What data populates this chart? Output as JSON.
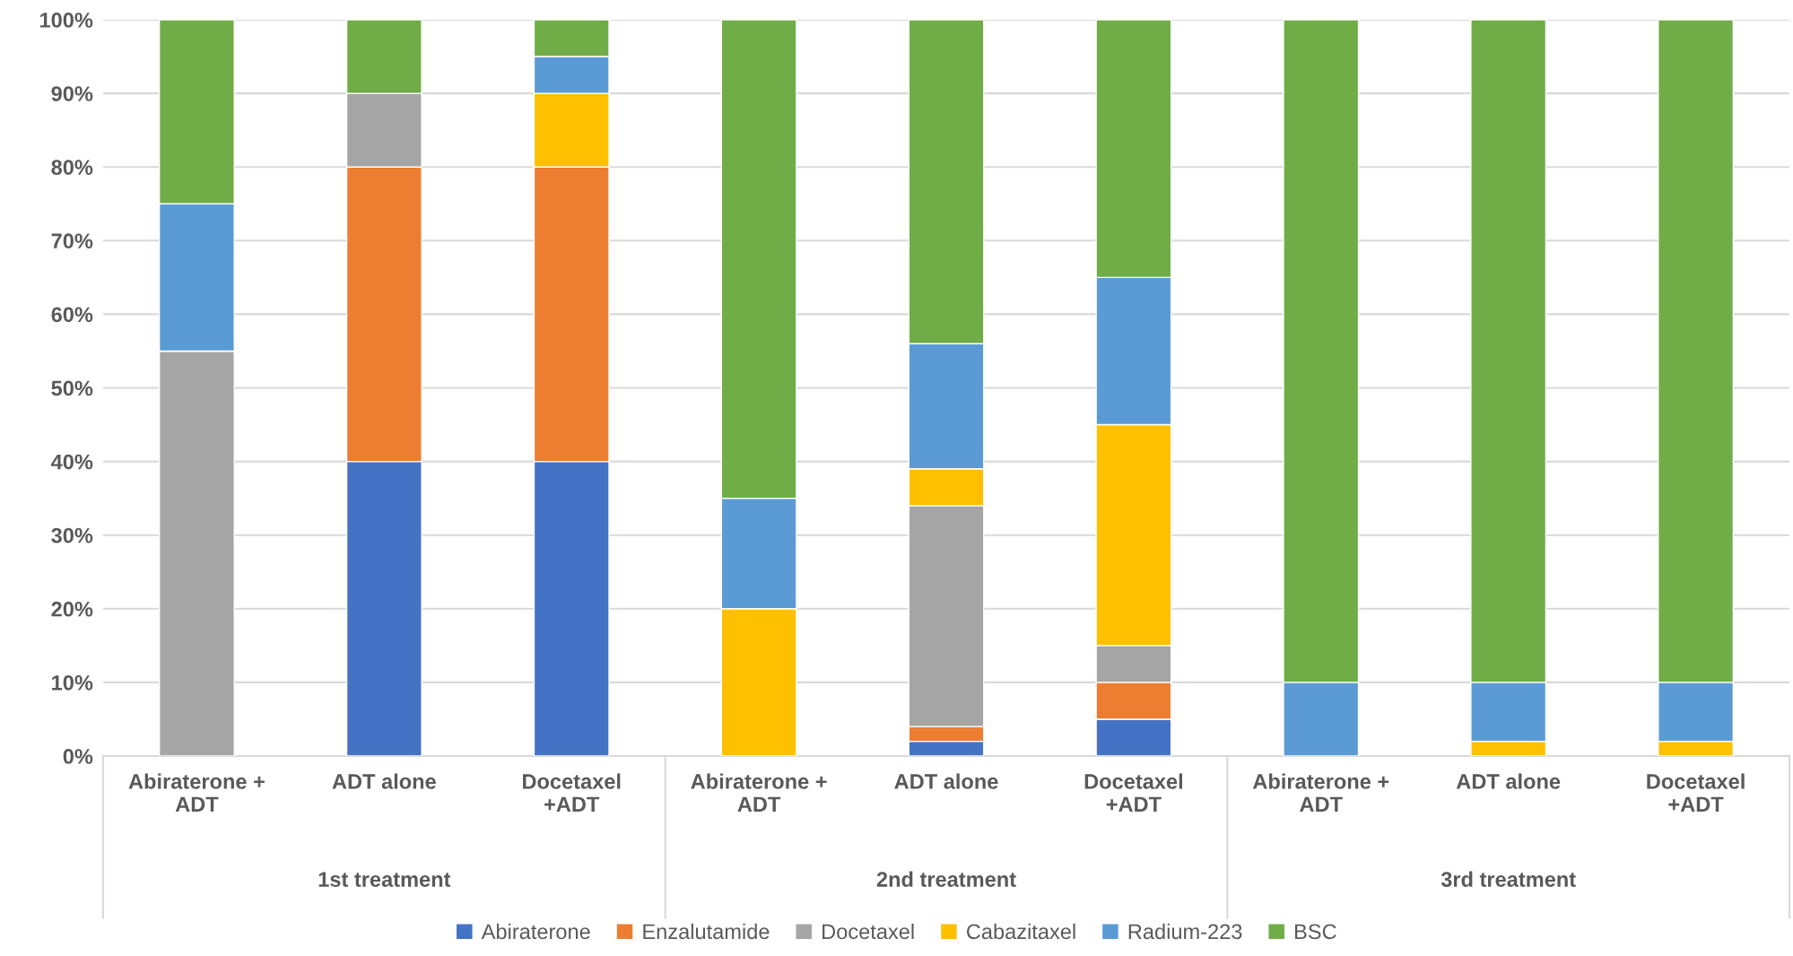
{
  "chart_data": {
    "type": "bar",
    "stacked": true,
    "categories": [
      "Abiraterone +\nADT",
      "ADT alone",
      "Docetaxel\n+ADT",
      "Abiraterone +\nADT",
      "ADT alone",
      "Docetaxel\n+ADT",
      "Abiraterone +\nADT",
      "ADT alone",
      "Docetaxel\n+ADT"
    ],
    "series": [
      {
        "name": "Abiraterone",
        "color": "#4472c4",
        "values": [
          0,
          40,
          40,
          0,
          2,
          5,
          0,
          0,
          0
        ]
      },
      {
        "name": "Enzalutamide",
        "color": "#ed7d31",
        "values": [
          0,
          40,
          40,
          0,
          2,
          5,
          0,
          0,
          0
        ]
      },
      {
        "name": "Docetaxel",
        "color": "#a5a5a5",
        "values": [
          55,
          10,
          0,
          0,
          30,
          5,
          0,
          0,
          0
        ]
      },
      {
        "name": "Cabazitaxel",
        "color": "#ffc000",
        "values": [
          0,
          0,
          10,
          20,
          5,
          30,
          0,
          2,
          2
        ]
      },
      {
        "name": "Radium-223",
        "color": "#5b9bd5",
        "values": [
          20,
          0,
          5,
          15,
          17,
          20,
          10,
          8,
          8
        ]
      },
      {
        "name": "BSC",
        "color": "#70ad47",
        "values": [
          25,
          10,
          5,
          65,
          44,
          35,
          90,
          90,
          90
        ]
      }
    ],
    "ylim": [
      0,
      100
    ],
    "yticks": [
      {
        "value": 0,
        "label": "0%"
      },
      {
        "value": 10,
        "label": "10%"
      },
      {
        "value": 20,
        "label": "20%"
      },
      {
        "value": 30,
        "label": "30%"
      },
      {
        "value": 40,
        "label": "40%"
      },
      {
        "value": 50,
        "label": "50%"
      },
      {
        "value": 60,
        "label": "60%"
      },
      {
        "value": 70,
        "label": "70%"
      },
      {
        "value": 80,
        "label": "80%"
      },
      {
        "value": 90,
        "label": "90%"
      },
      {
        "value": 100,
        "label": "100%"
      }
    ],
    "annotations": [
      "1st treatment",
      "2nd treatment",
      "3rd treatment"
    ],
    "grid": "y",
    "legend": "bottom"
  }
}
